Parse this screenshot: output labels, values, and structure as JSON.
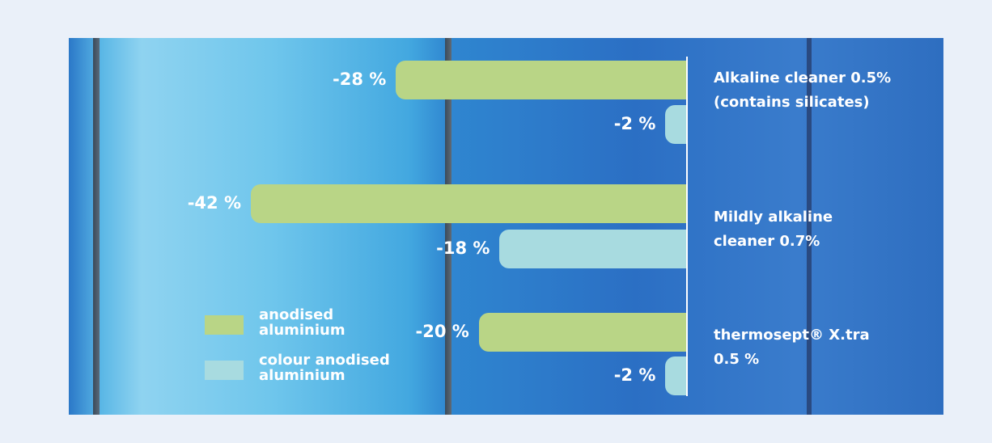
{
  "chart_data": {
    "type": "bar",
    "orientation": "horizontal",
    "categories": [
      "Alkaline cleaner 0.5%\n(contains silicates)",
      "Mildly alkaline\ncleaner 0.7%",
      "thermosept® X.tra\n0.5 %"
    ],
    "series": [
      {
        "name": "anodised\naluminium",
        "color": "#b9d586",
        "values": [
          -28,
          -42,
          -20
        ],
        "value_labels": [
          "-28 %",
          "-42 %",
          "-20 %"
        ]
      },
      {
        "name": "colour anodised\naluminium",
        "color": "#a8dbe0",
        "values": [
          -2,
          -18,
          -2
        ],
        "value_labels": [
          "-2 %",
          "-18 %",
          "-2 %"
        ]
      }
    ]
  }
}
